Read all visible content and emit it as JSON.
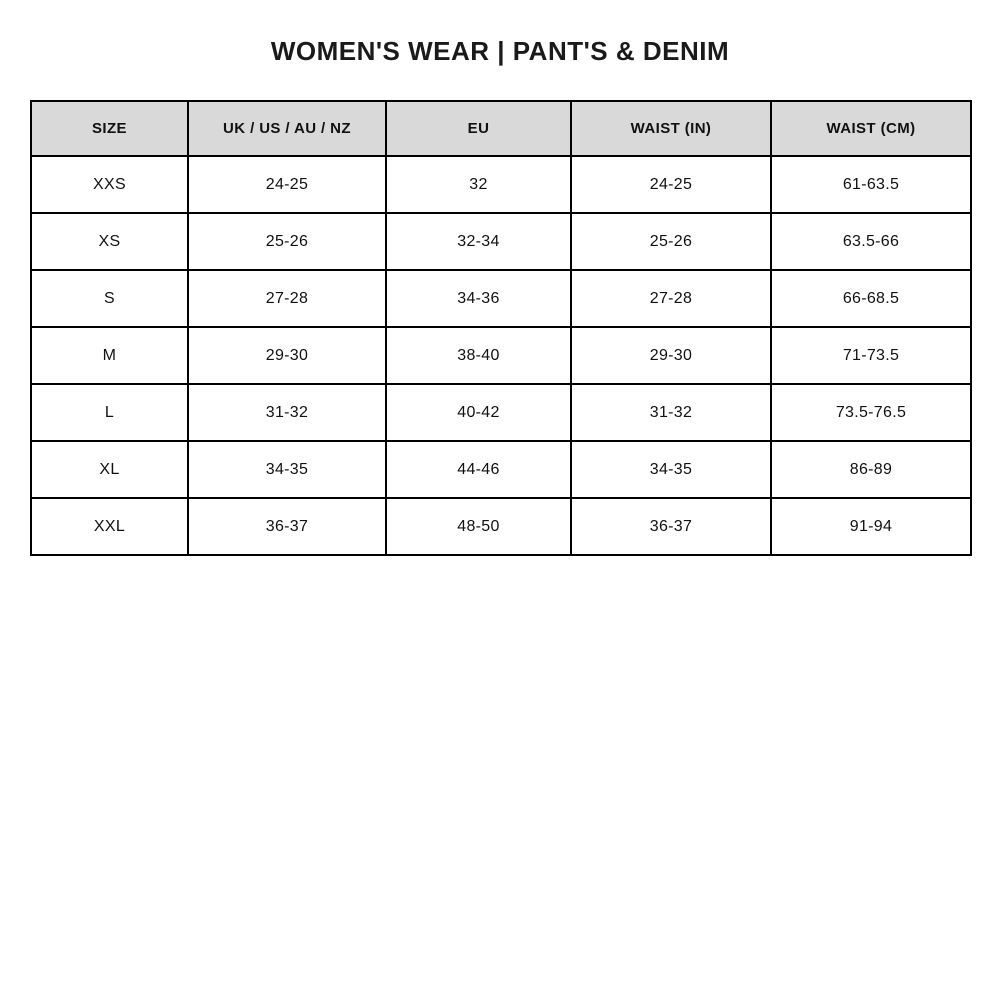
{
  "page": {
    "title": "WOMEN'S WEAR | PANT'S & DENIM"
  },
  "colors": {
    "header_bg": "#d9d9d9",
    "border": "#000000",
    "text": "#111111",
    "background": "#ffffff"
  },
  "chart_data": {
    "type": "table",
    "title": "WOMEN'S WEAR | PANT'S & DENIM",
    "columns": [
      "SIZE",
      "UK / US / AU / NZ",
      "EU",
      "WAIST (IN)",
      "WAIST (CM)"
    ],
    "rows": [
      [
        "XXS",
        "24-25",
        "32",
        "24-25",
        "61-63.5"
      ],
      [
        "XS",
        "25-26",
        "32-34",
        "25-26",
        "63.5-66"
      ],
      [
        "S",
        "27-28",
        "34-36",
        "27-28",
        "66-68.5"
      ],
      [
        "M",
        "29-30",
        "38-40",
        "29-30",
        "71-73.5"
      ],
      [
        "L",
        "31-32",
        "40-42",
        "31-32",
        "73.5-76.5"
      ],
      [
        "XL",
        "34-35",
        "44-46",
        "34-35",
        "86-89"
      ],
      [
        "XXL",
        "36-37",
        "48-50",
        "36-37",
        "91-94"
      ]
    ]
  }
}
